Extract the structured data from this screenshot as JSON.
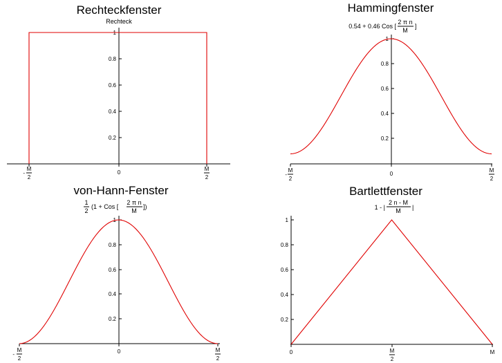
{
  "chart_data": [
    {
      "type": "line",
      "title": "Rechteckfenster",
      "subtitle": "Rechteck",
      "x": [
        -0.5,
        -0.5,
        0.5,
        0.5
      ],
      "y": [
        0,
        1,
        1,
        0
      ],
      "xlim": [
        -0.5,
        0.5
      ],
      "ylim": [
        0,
        1
      ],
      "xticks": [
        "-M/2",
        "0",
        "M/2"
      ],
      "yticks": [
        "0.2",
        "0.4",
        "0.6",
        "0.8",
        "1"
      ],
      "color": "#e00000"
    },
    {
      "type": "line",
      "title": "Hammingfenster",
      "subtitle": "0.54 + 0.46 Cos[2 π n / M]",
      "formula": "0.54+0.46cos(2*pi*n/M)",
      "xlim": [
        -0.5,
        0.5
      ],
      "ylim": [
        0,
        1
      ],
      "xticks": [
        "-M/2",
        "0",
        "M/2"
      ],
      "yticks": [
        "0.2",
        "0.4",
        "0.6",
        "0.8",
        "1"
      ],
      "color": "#e00000"
    },
    {
      "type": "line",
      "title": "von-Hann-Fenster",
      "subtitle": "1/2 (1 + Cos[2 π n / M])",
      "formula": "0.5*(1+cos(2*pi*n/M))",
      "xlim": [
        -0.5,
        0.5
      ],
      "ylim": [
        0,
        1
      ],
      "xticks": [
        "-M/2",
        "0",
        "M/2"
      ],
      "yticks": [
        "0.2",
        "0.4",
        "0.6",
        "0.8",
        "1"
      ],
      "color": "#e00000"
    },
    {
      "type": "line",
      "title": "Bartlettfenster",
      "subtitle": "1 - |(2 n - M) / M|",
      "x": [
        0,
        0.5,
        1
      ],
      "y": [
        0,
        1,
        0
      ],
      "xlim": [
        0,
        1
      ],
      "ylim": [
        0,
        1
      ],
      "xticks": [
        "0",
        "M/2",
        "M"
      ],
      "yticks": [
        "0.2",
        "0.4",
        "0.6",
        "0.8",
        "1"
      ],
      "color": "#e00000"
    }
  ],
  "text": {
    "rect_title": "Rechteckfenster",
    "rect_sub": "Rechteck",
    "hamm_title": "Hammingfenster",
    "hamm_sub_pre": "0.54 + 0.46 Cos [",
    "hamm_sub_num": "2 π n",
    "hamm_sub_den": "M",
    "hamm_sub_post": "]",
    "hann_title": "von-Hann-Fenster",
    "hann_sub_half_num": "1",
    "hann_sub_half_den": "2",
    "hann_sub_pre": "(1 + Cos [",
    "hann_sub_num": "2 π n",
    "hann_sub_den": "M",
    "hann_sub_post": "])",
    "bart_title": "Bartlettfenster",
    "bart_sub_pre": "1 - |",
    "bart_sub_num": "2 n - M",
    "bart_sub_den": "M",
    "bart_sub_post": "|"
  }
}
